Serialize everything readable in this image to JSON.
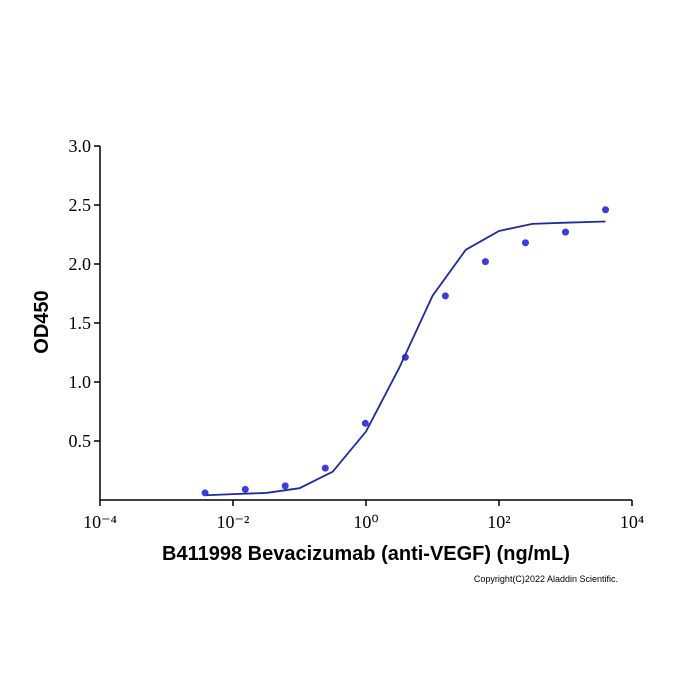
{
  "chart_data": {
    "type": "scatter",
    "xlabel": "B411998 Bevacizumab (anti-VEGF) (ng/mL)",
    "ylabel": "OD450",
    "annotation": "Copyright(C)2022 Aladdin Scientific.",
    "xscale": "log",
    "xlim": [
      0.0001,
      10000
    ],
    "xticks": [
      {
        "value": 0.0001,
        "label": "10⁻⁴"
      },
      {
        "value": 0.01,
        "label": "10⁻²"
      },
      {
        "value": 1,
        "label": "10⁰"
      },
      {
        "value": 100,
        "label": "10²"
      },
      {
        "value": 10000,
        "label": "10⁴"
      }
    ],
    "ylim": [
      0,
      3
    ],
    "yticks": [
      0.5,
      {
        "value": 1,
        "label": "1.0"
      },
      1.5,
      {
        "value": 2,
        "label": "2.0"
      },
      2.5,
      {
        "value": 3,
        "label": "3.0"
      }
    ],
    "series": [
      {
        "type": "scatter",
        "color": "#3b3be0",
        "x": [
          0.0038,
          0.0153,
          0.061,
          0.244,
          0.977,
          3.906,
          15.625,
          62.5,
          250,
          1000,
          4000
        ],
        "values": [
          0.06,
          0.09,
          0.12,
          0.27,
          0.65,
          1.21,
          1.73,
          2.02,
          2.18,
          2.27,
          2.46
        ]
      },
      {
        "type": "line",
        "color": "#1f2a9e",
        "x": [
          0.004,
          0.01,
          0.0316,
          0.1,
          0.316,
          1,
          3.16,
          10,
          31.6,
          100,
          316,
          1000,
          4000
        ],
        "values": [
          0.04,
          0.05,
          0.06,
          0.1,
          0.24,
          0.58,
          1.12,
          1.73,
          2.12,
          2.28,
          2.34,
          2.35,
          2.36
        ]
      }
    ]
  }
}
